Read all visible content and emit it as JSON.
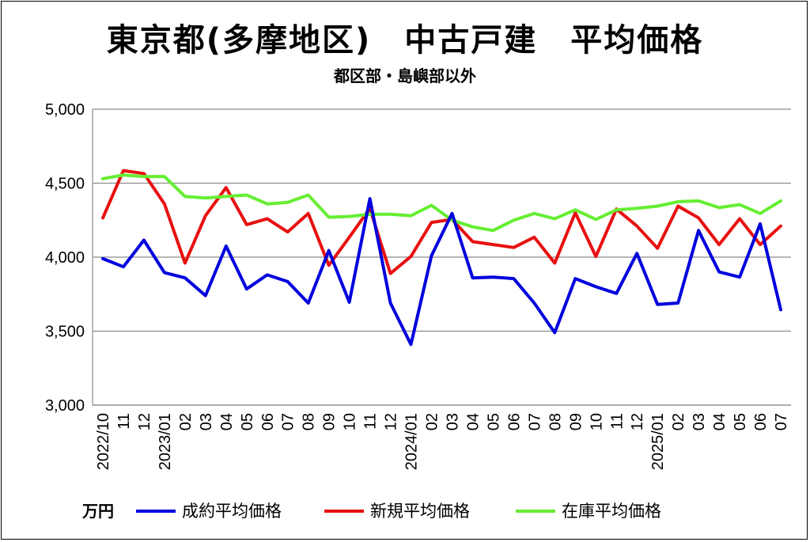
{
  "chart_data": {
    "type": "line",
    "title": "東京都(多摩地区)　中古戸建　平均価格",
    "subtitle": "都区部・島嶼部以外",
    "unit": "万円",
    "x": [
      "2022/10",
      "11",
      "12",
      "2023/01",
      "02",
      "03",
      "04",
      "05",
      "06",
      "07",
      "08",
      "09",
      "10",
      "11",
      "12",
      "2024/01",
      "02",
      "03",
      "04",
      "05",
      "06",
      "07",
      "08",
      "09",
      "10",
      "11",
      "12",
      "2025/01",
      "02",
      "03",
      "04",
      "05",
      "06",
      "07"
    ],
    "ylim": [
      3000,
      5000
    ],
    "yticks": [
      3000,
      3500,
      4000,
      4500,
      5000
    ],
    "ytick_labels": [
      "3,000",
      "3,500",
      "4,000",
      "4,500",
      "5,000"
    ],
    "grid": true,
    "legend_position": "bottom",
    "series": [
      {
        "name": "成約平均価格",
        "color": "#0000dd",
        "values": [
          3990,
          3935,
          4115,
          3895,
          3860,
          3740,
          4075,
          3785,
          3880,
          3835,
          3690,
          4045,
          3695,
          4395,
          3690,
          3410,
          4010,
          4295,
          3860,
          3865,
          3855,
          3690,
          3490,
          3855,
          3800,
          3755,
          4025,
          3680,
          3690,
          4180,
          3900,
          3865,
          4225,
          3645
        ]
      },
      {
        "name": "新規平均価格",
        "color": "#e81010",
        "values": [
          4265,
          4585,
          4565,
          4360,
          3960,
          4280,
          4470,
          4220,
          4260,
          4170,
          4295,
          3945,
          4135,
          4330,
          3890,
          4005,
          4235,
          4255,
          4105,
          4085,
          4065,
          4135,
          3960,
          4300,
          4005,
          4325,
          4210,
          4060,
          4345,
          4265,
          4085,
          4260,
          4085,
          4210
        ]
      },
      {
        "name": "在庫平均価格",
        "color": "#66ee33",
        "values": [
          4530,
          4555,
          4545,
          4545,
          4410,
          4400,
          4410,
          4420,
          4360,
          4370,
          4420,
          4270,
          4275,
          4290,
          4290,
          4280,
          4350,
          4250,
          4205,
          4180,
          4250,
          4295,
          4260,
          4320,
          4255,
          4320,
          4330,
          4345,
          4375,
          4380,
          4335,
          4355,
          4295,
          4380
        ]
      }
    ]
  }
}
